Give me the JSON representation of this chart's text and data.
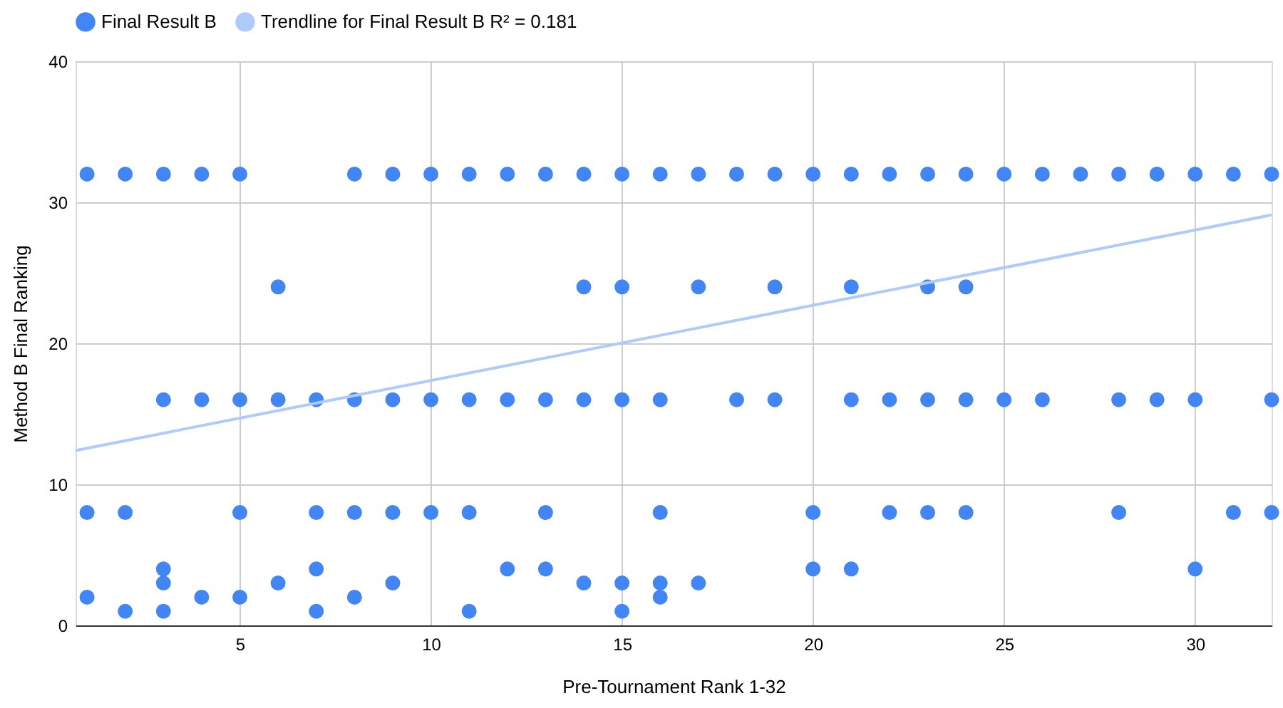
{
  "chart_data": {
    "type": "scatter",
    "xlabel": "Pre-Tournament Rank 1-32",
    "ylabel": "Method B Final Ranking",
    "xlim": [
      0.7,
      32
    ],
    "xticks": [
      5,
      10,
      15,
      20,
      25,
      30
    ],
    "ylim": [
      0,
      40
    ],
    "yticks": [
      0,
      10,
      20,
      30,
      40
    ],
    "grid": true,
    "legend": "top",
    "series": [
      {
        "name": "Final Result B",
        "color": "#4285f4",
        "marker": "circle",
        "x": [
          1,
          2,
          3,
          4,
          5,
          8,
          9,
          10,
          11,
          12,
          13,
          14,
          15,
          16,
          17,
          18,
          19,
          20,
          21,
          22,
          23,
          24,
          25,
          26,
          27,
          28,
          29,
          30,
          31,
          32,
          6,
          14,
          15,
          17,
          19,
          21,
          23,
          24,
          3,
          4,
          5,
          6,
          7,
          8,
          9,
          10,
          11,
          12,
          13,
          14,
          15,
          16,
          18,
          19,
          21,
          22,
          23,
          24,
          25,
          26,
          28,
          29,
          30,
          32,
          1,
          2,
          5,
          7,
          8,
          9,
          10,
          11,
          13,
          16,
          20,
          22,
          23,
          24,
          28,
          31,
          32,
          1,
          2,
          3,
          3,
          3,
          4,
          5,
          6,
          7,
          7,
          8,
          9,
          11,
          12,
          13,
          14,
          15,
          15,
          16,
          16,
          17,
          20,
          21,
          30
        ],
        "values": [
          32,
          32,
          32,
          32,
          32,
          32,
          32,
          32,
          32,
          32,
          32,
          32,
          32,
          32,
          32,
          32,
          32,
          32,
          32,
          32,
          32,
          32,
          32,
          32,
          32,
          32,
          32,
          32,
          32,
          32,
          24,
          24,
          24,
          24,
          24,
          24,
          24,
          24,
          16,
          16,
          16,
          16,
          16,
          16,
          16,
          16,
          16,
          16,
          16,
          16,
          16,
          16,
          16,
          16,
          16,
          16,
          16,
          16,
          16,
          16,
          16,
          16,
          16,
          16,
          8,
          8,
          8,
          8,
          8,
          8,
          8,
          8,
          8,
          8,
          8,
          8,
          8,
          8,
          8,
          8,
          8,
          2,
          1,
          4,
          3,
          1,
          2,
          2,
          3,
          4,
          1,
          2,
          3,
          1,
          4,
          4,
          3,
          3,
          1,
          3,
          2,
          3,
          4,
          4,
          4
        ]
      },
      {
        "name": "Trendline for Final Result B R² = 0.181",
        "color": "#aecbfa",
        "type": "line",
        "marker": "none",
        "x": [
          0.7,
          32
        ],
        "values": [
          12.4,
          29.1
        ]
      }
    ]
  }
}
